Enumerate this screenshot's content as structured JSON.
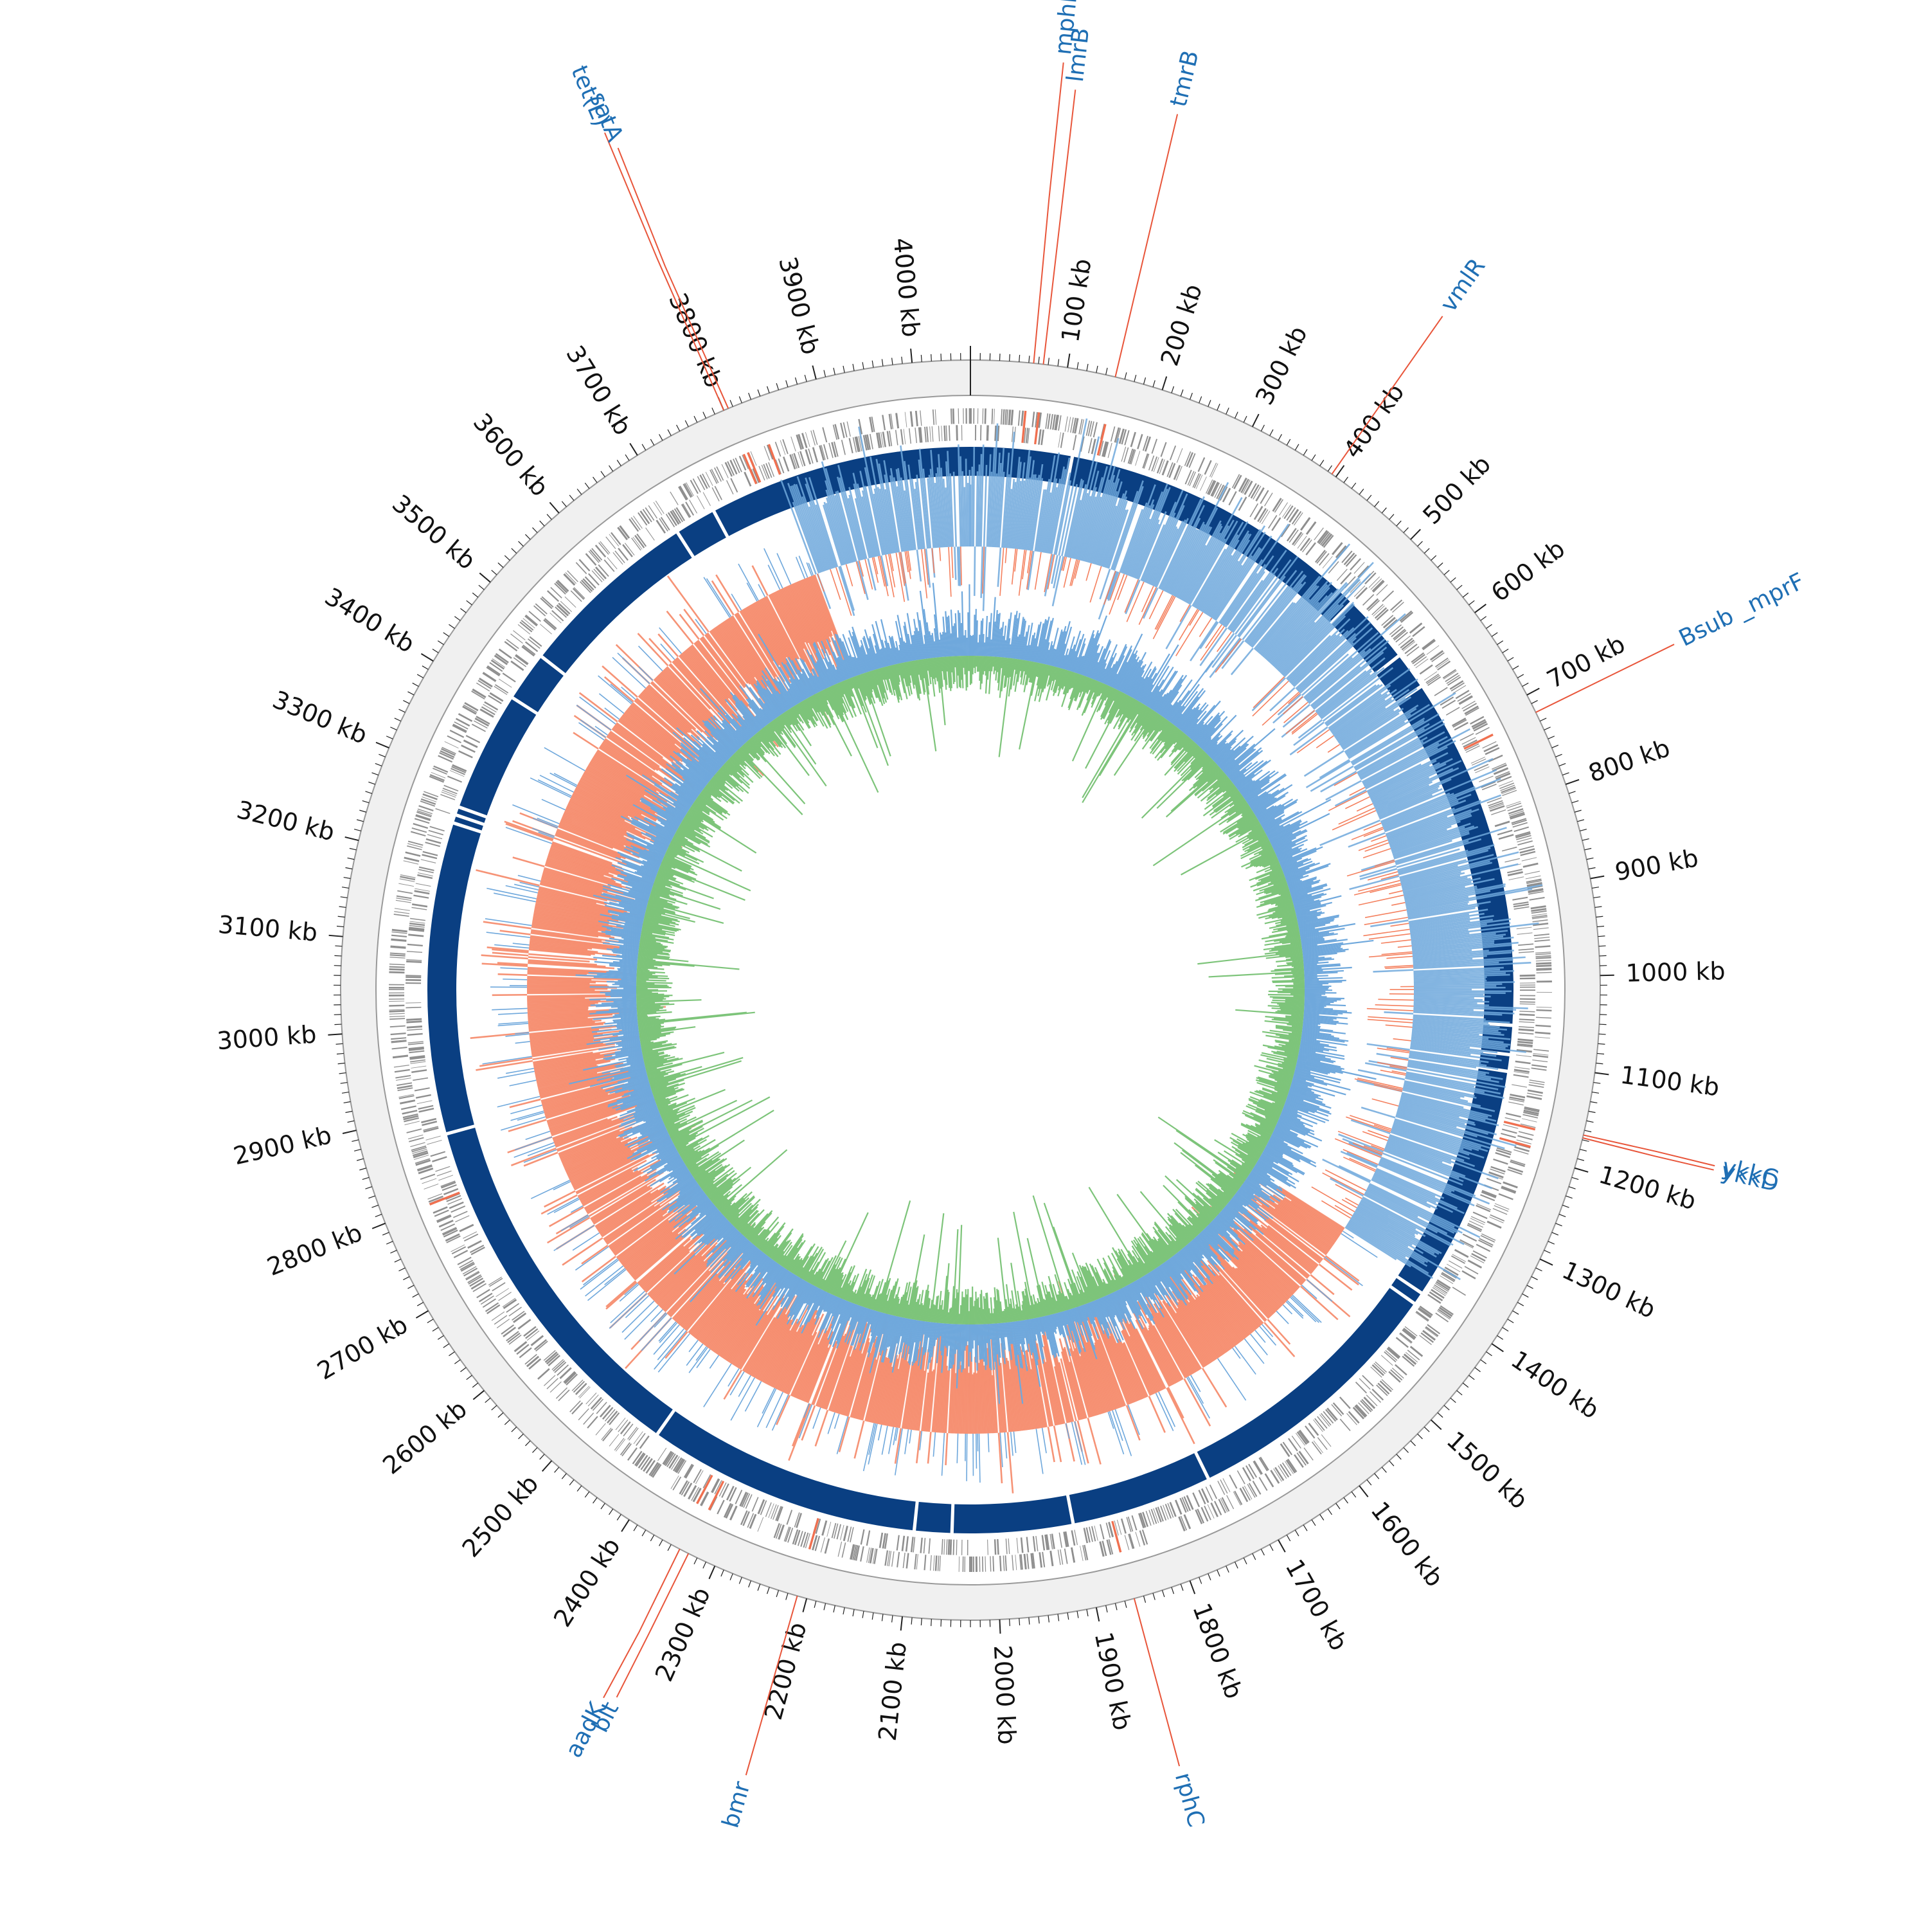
{
  "colors": {
    "background": "#ffffff",
    "outer_ring_fill": "#f0f0f0",
    "outer_ring_stroke": "#999999",
    "tick": "#222222",
    "cds_gray": "#8f8f8f",
    "cds_highlight": "#f07050",
    "contig_blue": "#0a3f82",
    "gc_skew_positive": "#6fa8dc",
    "gc_skew_negative": "#f4805e",
    "gc_content_outer": "#6fa8dc",
    "gc_content_inner": "#7dc47a",
    "gene_label": "#1f6fb4",
    "gene_line": "#e8553a"
  },
  "genome": {
    "length_kb": 4060,
    "tick_labels": [
      {
        "kb": 100,
        "text": "100 kb"
      },
      {
        "kb": 200,
        "text": "200 kb"
      },
      {
        "kb": 300,
        "text": "300 kb"
      },
      {
        "kb": 400,
        "text": "400 kb"
      },
      {
        "kb": 500,
        "text": "500 kb"
      },
      {
        "kb": 600,
        "text": "600 kb"
      },
      {
        "kb": 700,
        "text": "700 kb"
      },
      {
        "kb": 800,
        "text": "800 kb"
      },
      {
        "kb": 900,
        "text": "900 kb"
      },
      {
        "kb": 1000,
        "text": "1000 kb"
      },
      {
        "kb": 1100,
        "text": "1100 kb"
      },
      {
        "kb": 1200,
        "text": "1200 kb"
      },
      {
        "kb": 1300,
        "text": "1300 kb"
      },
      {
        "kb": 1400,
        "text": "1400 kb"
      },
      {
        "kb": 1500,
        "text": "1500 kb"
      },
      {
        "kb": 1600,
        "text": "1600 kb"
      },
      {
        "kb": 1700,
        "text": "1700 kb"
      },
      {
        "kb": 1800,
        "text": "1800 kb"
      },
      {
        "kb": 1900,
        "text": "1900 kb"
      },
      {
        "kb": 2000,
        "text": "2000 kb"
      },
      {
        "kb": 2100,
        "text": "2100 kb"
      },
      {
        "kb": 2200,
        "text": "2200 kb"
      },
      {
        "kb": 2300,
        "text": "2300 kb"
      },
      {
        "kb": 2400,
        "text": "2400 kb"
      },
      {
        "kb": 2500,
        "text": "2500 kb"
      },
      {
        "kb": 2600,
        "text": "2600 kb"
      },
      {
        "kb": 2700,
        "text": "2700 kb"
      },
      {
        "kb": 2800,
        "text": "2800 kb"
      },
      {
        "kb": 2900,
        "text": "2900 kb"
      },
      {
        "kb": 3000,
        "text": "3000 kb"
      },
      {
        "kb": 3100,
        "text": "3100 kb"
      },
      {
        "kb": 3200,
        "text": "3200 kb"
      },
      {
        "kb": 3300,
        "text": "3300 kb"
      },
      {
        "kb": 3400,
        "text": "3400 kb"
      },
      {
        "kb": 3500,
        "text": "3500 kb"
      },
      {
        "kb": 3600,
        "text": "3600 kb"
      },
      {
        "kb": 3700,
        "text": "3700 kb"
      },
      {
        "kb": 3800,
        "text": "3800 kb"
      },
      {
        "kb": 3900,
        "text": "3900 kb"
      },
      {
        "kb": 4000,
        "text": "4000 kb"
      }
    ],
    "contig_gaps_kb": [
      120,
      480,
      500,
      585,
      630,
      1055,
      1090,
      1110,
      1395,
      1410,
      1735,
      1905,
      2050,
      2095,
      2425,
      2870,
      3245,
      3255,
      3265,
      3410,
      3470,
      3690,
      3740
    ],
    "gc_skew_negative_span_kb": [
      1380,
      3830
    ],
    "highlighted_cds_kb": [
      3800,
      3805,
      3830,
      60,
      75,
      150,
      720,
      1170,
      1190,
      2210,
      2330,
      2345,
      1860,
      2800
    ]
  },
  "gene_labels": [
    {
      "name": "tet(L)",
      "kb": 3800
    },
    {
      "name": "satA",
      "kb": 3805
    },
    {
      "name": "mphK,mph(K)",
      "kb": 65
    },
    {
      "name": "lmrB",
      "kb": 75
    },
    {
      "name": "tmrB",
      "kb": 150
    },
    {
      "name": "vmlR",
      "kb": 395
    },
    {
      "name": "Bsub _mprF",
      "kb": 720
    },
    {
      "name": "ykkC",
      "kb": 1165
    },
    {
      "name": "ykkD",
      "kb": 1168
    },
    {
      "name": "aadK",
      "kb": 2340
    },
    {
      "name": "blt",
      "kb": 2330
    },
    {
      "name": "bmr",
      "kb": 2210
    },
    {
      "name": "rphC",
      "kb": 1860
    }
  ]
}
